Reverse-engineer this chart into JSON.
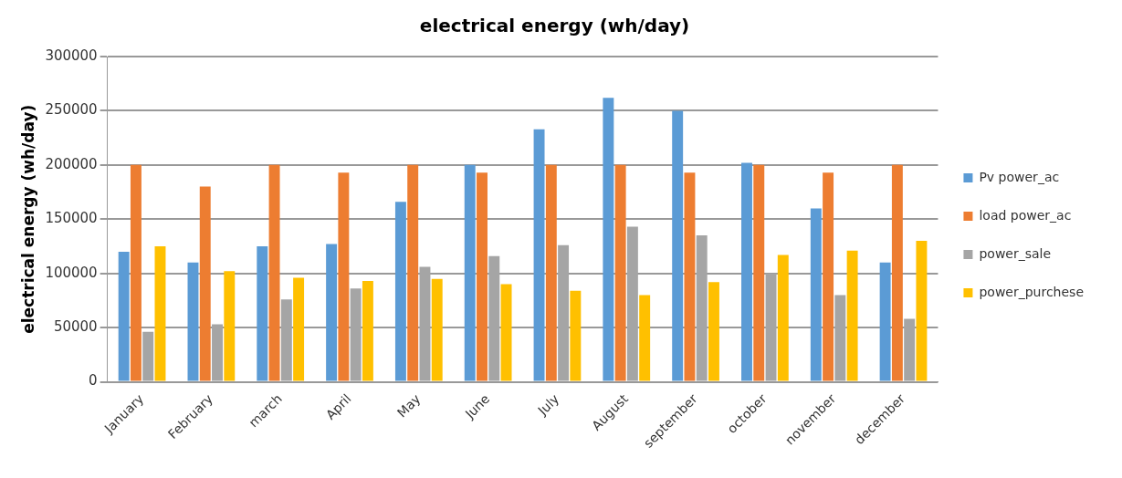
{
  "chart_data": {
    "type": "bar",
    "title": "electrical energy (wh/day)",
    "ylabel": "electrical energy (wh/day)",
    "categories": [
      "January",
      "February",
      "march",
      "April",
      "May",
      "June",
      "July",
      "August",
      "september",
      "october",
      "november",
      "december"
    ],
    "series": [
      {
        "name": "Pv power_ac",
        "color": "#5b9bd5",
        "values": [
          120000,
          110000,
          125000,
          127000,
          166000,
          200000,
          233000,
          262000,
          250000,
          202000,
          160000,
          110000
        ]
      },
      {
        "name": "load power_ac",
        "color": "#ed7d31",
        "values": [
          200000,
          180000,
          200000,
          193000,
          200000,
          193000,
          200000,
          200000,
          193000,
          200000,
          193000,
          200000
        ]
      },
      {
        "name": "power_sale",
        "color": "#a5a5a5",
        "values": [
          46000,
          53000,
          76000,
          86000,
          106000,
          116000,
          126000,
          143000,
          135000,
          100000,
          80000,
          58000
        ]
      },
      {
        "name": "power_purchese",
        "color": "#ffc000",
        "values": [
          125000,
          102000,
          96000,
          93000,
          95000,
          90000,
          84000,
          80000,
          92000,
          117000,
          121000,
          130000
        ]
      }
    ],
    "ylim": [
      0,
      300000
    ],
    "yticks": [
      0,
      50000,
      100000,
      150000,
      200000,
      250000,
      300000
    ],
    "grid": "y",
    "legend": "right"
  }
}
